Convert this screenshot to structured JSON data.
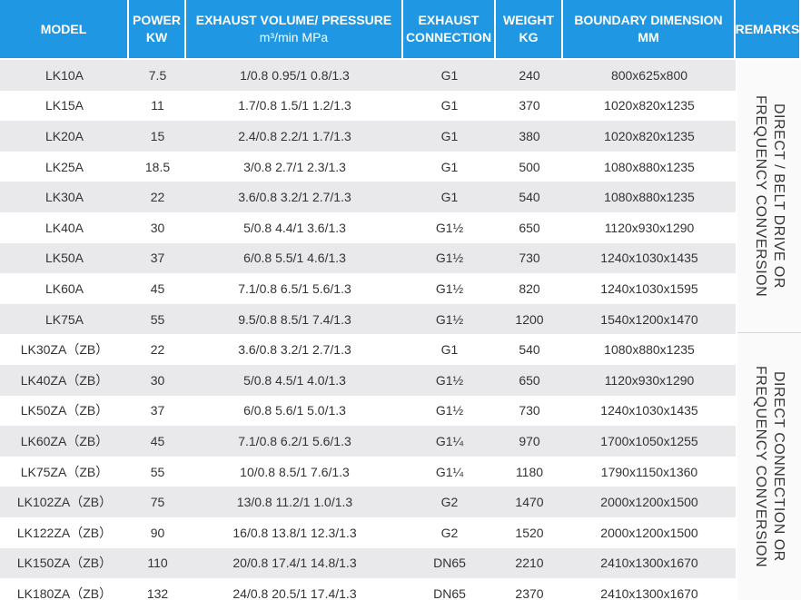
{
  "headers": {
    "model": [
      "MODEL"
    ],
    "power": [
      "POWER",
      "KW"
    ],
    "exhaust": [
      "EXHAUST VOLUME/ PRESSURE",
      "m³/min MPa"
    ],
    "connection": [
      "EXHAUST",
      "CONNECTION"
    ],
    "weight": [
      "WEIGHT",
      "KG"
    ],
    "dimension": [
      "BOUNDARY DIMENSION",
      "MM"
    ],
    "remarks": [
      "REMARKS"
    ]
  },
  "colors": {
    "header_bg": "#1f97e2",
    "header_text": "#ffffff",
    "stripe": "#e9e9eb",
    "text": "#333333"
  },
  "remarks": [
    "DIRECT / BELT DRIVE OR FREQUENCY CONVERSION",
    "DIRECT CONNECTION OR FREQUENCY CONVERSION"
  ],
  "rows": [
    [
      "LK10A",
      "7.5",
      "1/0.8  0.95/1  0.8/1.3",
      "G1",
      "240",
      "800x625x800"
    ],
    [
      "LK15A",
      "11",
      "1.7/0.8  1.5/1  1.2/1.3",
      "G1",
      "370",
      "1020x820x1235"
    ],
    [
      "LK20A",
      "15",
      "2.4/0.8  2.2/1  1.7/1.3",
      "G1",
      "380",
      "1020x820x1235"
    ],
    [
      "LK25A",
      "18.5",
      "3/0.8  2.7/1  2.3/1.3",
      "G1",
      "500",
      "1080x880x1235"
    ],
    [
      "LK30A",
      "22",
      "3.6/0.8  3.2/1  2.7/1.3",
      "G1",
      "540",
      "1080x880x1235"
    ],
    [
      "LK40A",
      "30",
      "5/0.8  4.4/1  3.6/1.3",
      "G1½",
      "650",
      "1120x930x1290"
    ],
    [
      "LK50A",
      "37",
      "6/0.8  5.5/1  4.6/1.3",
      "G1½",
      "730",
      "1240x1030x1435"
    ],
    [
      "LK60A",
      "45",
      "7.1/0.8  6.5/1  5.6/1.3",
      "G1½",
      "820",
      "1240x1030x1595"
    ],
    [
      "LK75A",
      "55",
      "9.5/0.8  8.5/1  7.4/1.3",
      "G1½",
      "1200",
      "1540x1200x1470"
    ],
    [
      "LK30ZA（ZB）",
      "22",
      "3.6/0.8  3.2/1  2.7/1.3",
      "G1",
      "540",
      "1080x880x1235"
    ],
    [
      "LK40ZA（ZB）",
      "30",
      "5/0.8  4.5/1  4.0/1.3",
      "G1½",
      "650",
      "1120x930x1290"
    ],
    [
      "LK50ZA（ZB）",
      "37",
      "6/0.8  5.6/1  5.0/1.3",
      "G1½",
      "730",
      "1240x1030x1435"
    ],
    [
      "LK60ZA（ZB）",
      "45",
      "7.1/0.8  6.2/1  5.6/1.3",
      "G1¼",
      "970",
      "1700x1050x1255"
    ],
    [
      "LK75ZA（ZB）",
      "55",
      "10/0.8  8.5/1  7.6/1.3",
      "G1¼",
      "1180",
      "1790x1150x1360"
    ],
    [
      "LK102ZA（ZB）",
      "75",
      "13/0.8  11.2/1  1.0/1.3",
      "G2",
      "1470",
      "2000x1200x1500"
    ],
    [
      "LK122ZA（ZB）",
      "90",
      "16/0.8  13.8/1  12.3/1.3",
      "G2",
      "1520",
      "2000x1200x1500"
    ],
    [
      "LK150ZA（ZB）",
      "110",
      "20/0.8  17.4/1  14.8/1.3",
      "DN65",
      "2210",
      "2410x1300x1670"
    ],
    [
      "LK180ZA（ZB）",
      "132",
      "24/0.8  20.5/1  17.4/1.3",
      "DN65",
      "2370",
      "2410x1300x1670"
    ]
  ]
}
